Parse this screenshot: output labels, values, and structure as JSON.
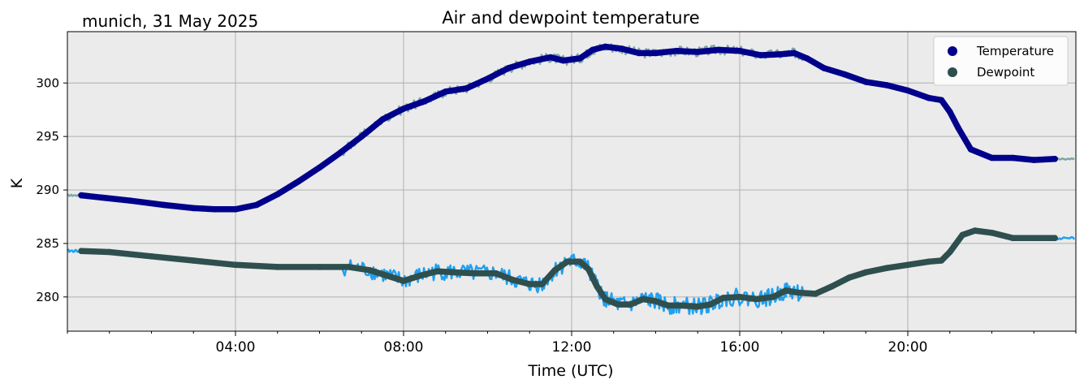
{
  "header": {
    "location_date": "munich, 31 May 2025"
  },
  "chart_data": {
    "type": "line",
    "title": "Air and dewpoint temperature",
    "xlabel": "Time (UTC)",
    "ylabel": "K",
    "x_unit": "hours UTC",
    "xlim": [
      0,
      24
    ],
    "ylim": [
      276.8,
      304.8
    ],
    "x_ticks": [
      {
        "value": 4,
        "label": "04:00"
      },
      {
        "value": 8,
        "label": "08:00"
      },
      {
        "value": 12,
        "label": "12:00"
      },
      {
        "value": 16,
        "label": "16:00"
      },
      {
        "value": 20,
        "label": "20:00"
      }
    ],
    "y_ticks": [
      {
        "value": 280,
        "label": "280"
      },
      {
        "value": 285,
        "label": "285"
      },
      {
        "value": 290,
        "label": "290"
      },
      {
        "value": 295,
        "label": "295"
      },
      {
        "value": 300,
        "label": "300"
      }
    ],
    "grid": true,
    "legend_position": "top-right",
    "colors": {
      "plot_background": "#ebebeb",
      "grid": "#b0b0b0",
      "temperature": "#00008b",
      "dewpoint": "#2f4f4f",
      "temperature_raw": "#7fa6a6",
      "dewpoint_raw": "#22a0ee"
    },
    "series": [
      {
        "name": "Temperature",
        "color": "#00008b",
        "x": [
          0.33,
          0.8,
          1.5,
          2.3,
          3.0,
          3.5,
          4.0,
          4.5,
          5.0,
          5.5,
          6.0,
          6.5,
          7.0,
          7.5,
          8.0,
          8.5,
          9.0,
          9.5,
          10.0,
          10.5,
          11.0,
          11.5,
          11.8,
          12.2,
          12.5,
          12.8,
          13.2,
          13.6,
          14.0,
          14.5,
          15.0,
          15.5,
          16.0,
          16.5,
          17.0,
          17.3,
          17.6,
          18.0,
          18.5,
          19.0,
          19.5,
          20.0,
          20.5,
          20.8,
          21.0,
          21.2,
          21.5,
          22.0,
          22.5,
          23.0,
          23.5
        ],
        "y": [
          289.5,
          289.3,
          289.0,
          288.6,
          288.3,
          288.2,
          288.2,
          288.6,
          289.6,
          290.8,
          292.1,
          293.5,
          295.0,
          296.6,
          297.6,
          298.3,
          299.2,
          299.5,
          300.4,
          301.4,
          302.0,
          302.4,
          302.1,
          302.3,
          303.1,
          303.4,
          303.2,
          302.8,
          302.8,
          303.0,
          302.9,
          303.1,
          303.0,
          302.6,
          302.7,
          302.8,
          302.3,
          301.4,
          300.8,
          300.1,
          299.8,
          299.3,
          298.6,
          298.4,
          297.3,
          295.8,
          293.8,
          293.0,
          293.0,
          292.8,
          292.9
        ]
      },
      {
        "name": "Dewpoint",
        "color": "#2f4f4f",
        "x": [
          0.33,
          1.0,
          2.0,
          3.0,
          4.0,
          5.0,
          6.0,
          6.7,
          7.2,
          7.6,
          8.0,
          8.4,
          8.8,
          9.2,
          9.7,
          10.2,
          10.6,
          11.0,
          11.3,
          11.6,
          11.9,
          12.2,
          12.4,
          12.6,
          12.8,
          13.1,
          13.4,
          13.7,
          14.0,
          14.3,
          14.6,
          15.0,
          15.3,
          15.6,
          16.0,
          16.4,
          16.8,
          17.1,
          17.4,
          17.8,
          18.2,
          18.6,
          19.0,
          19.5,
          20.0,
          20.5,
          20.8,
          21.0,
          21.3,
          21.6,
          22.0,
          22.5,
          23.0,
          23.5
        ],
        "y": [
          284.3,
          284.2,
          283.8,
          283.4,
          283.0,
          282.8,
          282.8,
          282.8,
          282.5,
          282.0,
          281.5,
          282.0,
          282.4,
          282.3,
          282.2,
          282.2,
          281.6,
          281.2,
          281.2,
          282.5,
          283.3,
          283.3,
          282.6,
          281.0,
          279.8,
          279.3,
          279.3,
          279.8,
          279.6,
          279.2,
          279.2,
          279.1,
          279.3,
          279.9,
          280.0,
          279.8,
          280.0,
          280.6,
          280.4,
          280.3,
          281.0,
          281.8,
          282.3,
          282.7,
          283.0,
          283.3,
          283.4,
          284.2,
          285.8,
          286.2,
          286.0,
          285.5,
          285.5,
          285.5
        ]
      }
    ]
  }
}
